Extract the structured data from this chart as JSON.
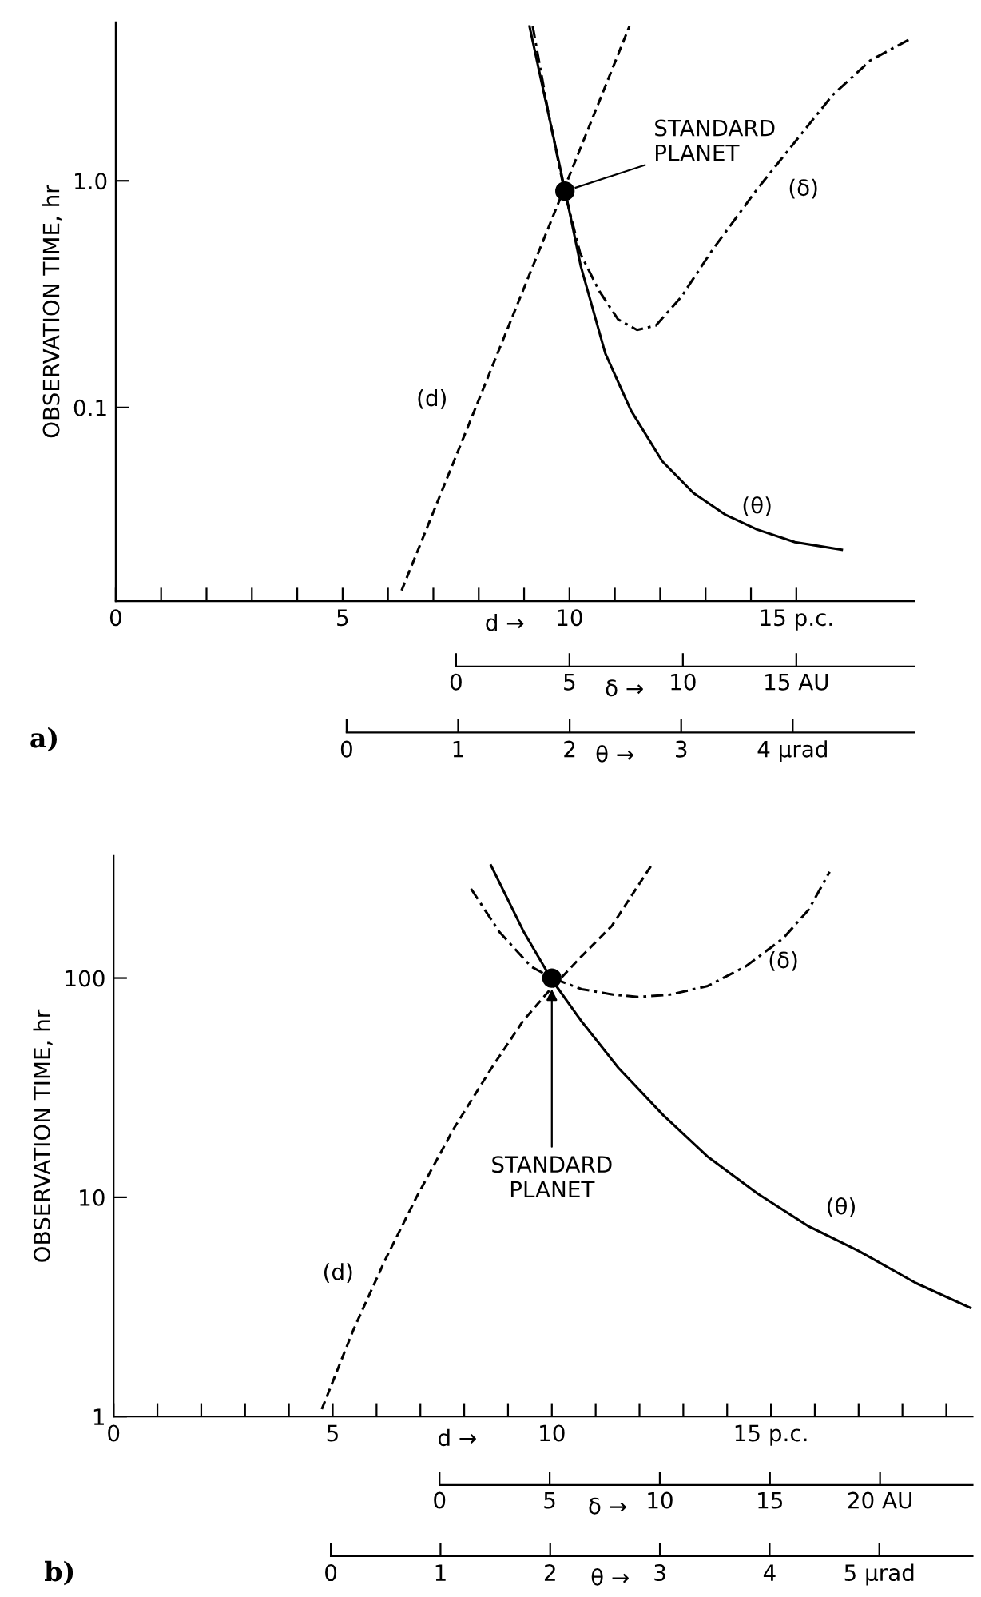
{
  "chart_data": [
    {
      "type": "line",
      "title": "a)",
      "ylabel": "OBSERVATION TIME, hr",
      "xlabel": "d →",
      "x2label": "δ →",
      "xlim": [
        0,
        17.6
      ],
      "xticks": [
        0,
        {
          "value": 1,
          "label": null
        },
        {
          "value": 2,
          "label": null
        },
        {
          "value": 3,
          "label": null
        },
        {
          "value": 4,
          "label": null
        },
        5,
        {
          "value": 6,
          "label": null
        },
        {
          "value": 7,
          "label": null
        },
        {
          "value": 8,
          "label": null
        },
        {
          "value": 9,
          "label": null
        },
        10,
        {
          "value": 11,
          "label": null
        },
        {
          "value": 12,
          "label": null
        },
        {
          "value": 13,
          "label": null
        },
        {
          "value": 14,
          "label": null
        },
        {
          "value": 15,
          "label": "15 p.c."
        }
      ],
      "x2lim": [
        -15,
        20.2
      ],
      "x2ticks": [
        0,
        5,
        10,
        {
          "value": 15,
          "label": "15 AU"
        }
      ],
      "ylim": [
        0.014,
        5
      ],
      "yticks": [
        {
          "value": 0.1,
          "label": "0.1"
        },
        {
          "value": 1,
          "label": "1.0"
        }
      ],
      "log": "y",
      "grid": false,
      "legend": false,
      "series": [
        {
          "name": "(d)",
          "color": "#000000",
          "line_style": "dashed",
          "x": [
            6.3,
            8,
            9.89,
            11.32
          ],
          "values": [
            0.0156,
            0.108,
            0.93,
            4.8
          ]
        },
        {
          "name": "(δ)",
          "color": "#000000",
          "line_style": "dashdot",
          "axis": "x2",
          "x": [
            3.38,
            4.08,
            4.78,
            5.47,
            6.31,
            7.14,
            7.98,
            8.81,
            9.92,
            11.31,
            13.26,
            14.93,
            16.6,
            18.27,
            20.1
          ],
          "values": [
            4.8,
            1.97,
            0.9,
            0.48,
            0.327,
            0.245,
            0.22,
            0.23,
            0.307,
            0.497,
            0.915,
            1.48,
            2.39,
            3.4,
            4.27
          ]
        },
        {
          "type": "scatter",
          "color": "#000000",
          "marker": "circle",
          "x": [
            9.9
          ],
          "values": [
            0.9
          ]
        }
      ],
      "annotations": [
        {
          "text": "STANDARD\nPLANET",
          "x": 9.9,
          "y": 0.9
        }
      ]
    },
    {
      "type": "line",
      "xlabel": "θ →",
      "tick_labels": "x",
      "xlim": [
        -2.07,
        5.09
      ],
      "xticks": [
        0,
        1,
        2,
        3,
        {
          "value": 4,
          "label": "4 µrad"
        }
      ],
      "ylim": [
        0.014,
        5
      ],
      "log": "y",
      "grid": false,
      "legend": false,
      "series": [
        {
          "name": "(θ)",
          "color": "#000000",
          "line_style": "solid",
          "x": [
            1.64,
            1.81,
            1.96,
            2.1,
            2.32,
            2.55,
            2.83,
            3.11,
            3.4,
            3.68,
            4.02,
            4.44
          ],
          "values": [
            4.8,
            1.97,
            0.9,
            0.42,
            0.173,
            0.097,
            0.058,
            0.042,
            0.0336,
            0.029,
            0.0255,
            0.0236
          ]
        }
      ]
    },
    {
      "type": "line",
      "title": "b)",
      "ylabel": "OBSERVATION TIME, hr",
      "xlabel": "d →",
      "x2label": "δ →",
      "xlim": [
        0,
        19.6
      ],
      "xticks": [
        0,
        {
          "value": 1,
          "label": null
        },
        {
          "value": 2,
          "label": null
        },
        {
          "value": 3,
          "label": null
        },
        {
          "value": 4,
          "label": null
        },
        5,
        {
          "value": 6,
          "label": null
        },
        {
          "value": 7,
          "label": null
        },
        {
          "value": 8,
          "label": null
        },
        {
          "value": 9,
          "label": null
        },
        10,
        {
          "value": 11,
          "label": null
        },
        {
          "value": 12,
          "label": null
        },
        {
          "value": 13,
          "label": null
        },
        {
          "value": 14,
          "label": null
        },
        {
          "value": 15,
          "label": "15 p.c."
        },
        {
          "value": 16,
          "label": null
        },
        {
          "value": 17,
          "label": null
        },
        {
          "value": 18,
          "label": null
        },
        {
          "value": 19,
          "label": null
        }
      ],
      "x2lim": [
        -14.8,
        24.2
      ],
      "x2ticks": [
        0,
        5,
        10,
        15,
        {
          "value": 20,
          "label": "20 AU"
        }
      ],
      "ylim": [
        1,
        360
      ],
      "yticks": [
        1,
        10,
        100
      ],
      "log": "y",
      "grid": false,
      "legend": false,
      "series": [
        {
          "name": "(d)",
          "color": "#000000",
          "line_style": "dashed",
          "x": [
            4.75,
            5.47,
            6.19,
            6.91,
            7.77,
            8.63,
            9.35,
            9.97,
            10.65,
            11.37,
            12.27
          ],
          "values": [
            1.08,
            2.48,
            5.15,
            10,
            20.7,
            39,
            64,
            89,
            124,
            173,
            326
          ]
        },
        {
          "name": "(δ)",
          "color": "#000000",
          "line_style": "dashdot",
          "axis": "x2",
          "x": [
            1.43,
            2.72,
            4.15,
            5.1,
            6.45,
            7.88,
            9.02,
            10.46,
            12.18,
            13.9,
            15.61,
            16.76,
            17.71
          ],
          "values": [
            255,
            162,
            113,
            100,
            89,
            84,
            82,
            84,
            92,
            113,
            152,
            205,
            305
          ]
        },
        {
          "type": "scatter",
          "color": "#000000",
          "marker": "circle",
          "x": [
            10
          ],
          "values": [
            100
          ]
        }
      ],
      "annotations": [
        {
          "text": "STANDARD\nPLANET",
          "x": 10,
          "y": 100
        }
      ]
    },
    {
      "type": "line",
      "xlabel": "θ →",
      "tick_labels": "x",
      "xlim": [
        -1.98,
        5.85
      ],
      "xticks": [
        0,
        1,
        2,
        3,
        4,
        {
          "value": 5,
          "label": "5 µrad"
        }
      ],
      "ylim": [
        1,
        360
      ],
      "log": "y",
      "grid": false,
      "legend": false,
      "series": [
        {
          "name": "(θ)",
          "color": "#000000",
          "line_style": "solid",
          "x": [
            1.46,
            1.76,
            2.01,
            2.28,
            2.62,
            3.03,
            3.43,
            3.89,
            4.35,
            4.81,
            5.33,
            5.83
          ],
          "values": [
            326,
            162,
            99,
            64,
            39,
            23.7,
            15.4,
            10.4,
            7.4,
            5.7,
            4.07,
            3.13
          ]
        }
      ]
    }
  ]
}
